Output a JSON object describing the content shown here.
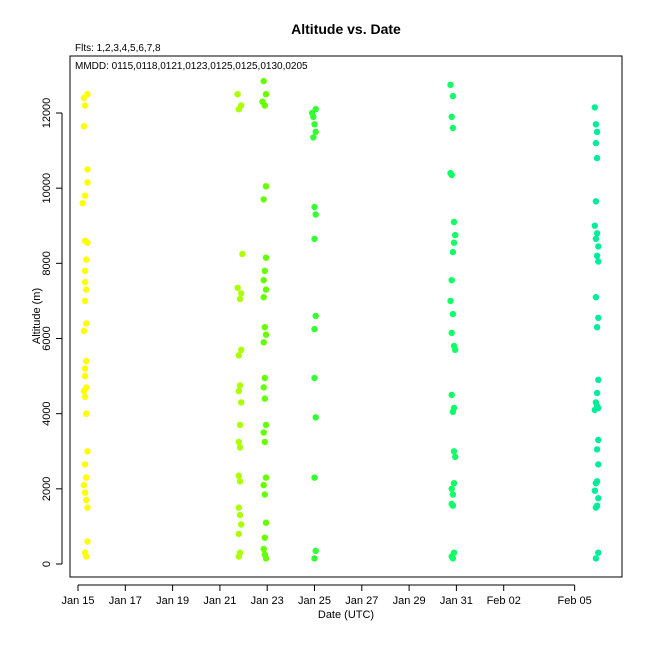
{
  "chart_data": {
    "type": "scatter",
    "title": "Altitude  vs. Date",
    "subtitle_lines": [
      "Flts: 1,2,3,4,5,6,7,8",
      "MMDD: 0115,0118,0121,0123,0125,0125,0130,0205"
    ],
    "xlabel": "Date (UTC)",
    "ylabel": "Altitude (m)",
    "x_unit": "days from Jan 15",
    "xlim": [
      -0.7,
      23.2
    ],
    "ylim": [
      -400,
      13000
    ],
    "grid": false,
    "legend": "none",
    "x_ticks": [
      {
        "value": 0,
        "label": "Jan 15"
      },
      {
        "value": 2,
        "label": "Jan 17"
      },
      {
        "value": 4,
        "label": "Jan 19"
      },
      {
        "value": 6,
        "label": "Jan 21"
      },
      {
        "value": 8,
        "label": "Jan 23"
      },
      {
        "value": 10,
        "label": "Jan 25"
      },
      {
        "value": 12,
        "label": "Jan 27"
      },
      {
        "value": 14,
        "label": "Jan 29"
      },
      {
        "value": 16,
        "label": "Jan 31"
      },
      {
        "value": 18,
        "label": "Feb 02"
      },
      {
        "value": 21,
        "label": "Feb 05"
      }
    ],
    "y_ticks": [
      0,
      2000,
      4000,
      6000,
      8000,
      10000,
      12000
    ],
    "series": [
      {
        "color": "#ffff00",
        "x_center": 0.3,
        "points": [
          [
            0.25,
            12400
          ],
          [
            0.4,
            12500
          ],
          [
            0.3,
            12200
          ],
          [
            0.25,
            11650
          ],
          [
            0.4,
            10500
          ],
          [
            0.4,
            10150
          ],
          [
            0.3,
            9800
          ],
          [
            0.2,
            9600
          ],
          [
            0.3,
            8600
          ],
          [
            0.4,
            8550
          ],
          [
            0.35,
            8100
          ],
          [
            0.3,
            7800
          ],
          [
            0.3,
            7500
          ],
          [
            0.35,
            7300
          ],
          [
            0.3,
            7000
          ],
          [
            0.35,
            6400
          ],
          [
            0.25,
            6200
          ],
          [
            0.35,
            5400
          ],
          [
            0.3,
            5200
          ],
          [
            0.3,
            5000
          ],
          [
            0.35,
            4700
          ],
          [
            0.25,
            4600
          ],
          [
            0.3,
            4450
          ],
          [
            0.35,
            4000
          ],
          [
            0.4,
            3000
          ],
          [
            0.3,
            2650
          ],
          [
            0.35,
            2300
          ],
          [
            0.25,
            2100
          ],
          [
            0.3,
            1900
          ],
          [
            0.35,
            1700
          ],
          [
            0.4,
            1500
          ],
          [
            0.4,
            600
          ],
          [
            0.3,
            300
          ],
          [
            0.35,
            200
          ]
        ]
      },
      {
        "color": "#aaff00",
        "x_center": 6.8,
        "points": [
          [
            6.75,
            12500
          ],
          [
            6.9,
            12200
          ],
          [
            6.8,
            12100
          ],
          [
            6.95,
            8250
          ],
          [
            6.75,
            7350
          ],
          [
            6.9,
            7200
          ],
          [
            6.85,
            7050
          ],
          [
            6.9,
            5700
          ],
          [
            6.8,
            5550
          ],
          [
            6.85,
            4750
          ],
          [
            6.8,
            4600
          ],
          [
            6.9,
            4300
          ],
          [
            6.85,
            3700
          ],
          [
            6.8,
            3250
          ],
          [
            6.85,
            3100
          ],
          [
            6.8,
            2350
          ],
          [
            6.85,
            2200
          ],
          [
            6.8,
            1500
          ],
          [
            6.85,
            1300
          ],
          [
            6.9,
            1050
          ],
          [
            6.8,
            800
          ],
          [
            6.85,
            300
          ],
          [
            6.8,
            200
          ]
        ]
      },
      {
        "color": "#66ff00",
        "x_center": 7.9,
        "points": [
          [
            7.85,
            12850
          ],
          [
            7.95,
            12500
          ],
          [
            7.8,
            12300
          ],
          [
            7.9,
            12200
          ],
          [
            7.95,
            10050
          ],
          [
            7.85,
            9700
          ],
          [
            7.95,
            8150
          ],
          [
            7.9,
            7800
          ],
          [
            7.85,
            7550
          ],
          [
            7.95,
            7300
          ],
          [
            7.85,
            7100
          ],
          [
            7.9,
            6300
          ],
          [
            7.95,
            6100
          ],
          [
            7.85,
            5900
          ],
          [
            7.9,
            4950
          ],
          [
            7.85,
            4700
          ],
          [
            7.9,
            4400
          ],
          [
            7.95,
            3700
          ],
          [
            7.85,
            3500
          ],
          [
            7.9,
            3250
          ],
          [
            7.95,
            2300
          ],
          [
            7.85,
            2100
          ],
          [
            7.9,
            1850
          ],
          [
            7.95,
            1100
          ],
          [
            7.9,
            700
          ],
          [
            7.85,
            400
          ],
          [
            7.9,
            250
          ],
          [
            7.95,
            150
          ]
        ]
      },
      {
        "color": "#33ff33",
        "x_center": 10.0,
        "points": [
          [
            9.9,
            12000
          ],
          [
            10.05,
            12100
          ],
          [
            9.95,
            11900
          ],
          [
            10.0,
            11700
          ],
          [
            10.05,
            11500
          ],
          [
            9.95,
            11350
          ],
          [
            10.0,
            9500
          ],
          [
            10.05,
            9300
          ],
          [
            10.0,
            8650
          ],
          [
            10.05,
            6600
          ],
          [
            10.0,
            6250
          ],
          [
            10.0,
            4950
          ],
          [
            10.05,
            3900
          ],
          [
            10.0,
            2300
          ],
          [
            10.05,
            350
          ],
          [
            10.0,
            150
          ]
        ]
      },
      {
        "color": "#11ff66",
        "x_center": 15.8,
        "points": [
          [
            15.75,
            12750
          ],
          [
            15.85,
            12450
          ],
          [
            15.8,
            11900
          ],
          [
            15.85,
            11600
          ],
          [
            15.75,
            10400
          ],
          [
            15.8,
            10350
          ],
          [
            15.9,
            9100
          ],
          [
            15.95,
            8750
          ],
          [
            15.9,
            8550
          ],
          [
            15.85,
            8300
          ],
          [
            15.8,
            7550
          ],
          [
            15.75,
            7000
          ],
          [
            15.85,
            6650
          ],
          [
            15.8,
            6150
          ],
          [
            15.9,
            5800
          ],
          [
            15.95,
            5700
          ],
          [
            15.8,
            4500
          ],
          [
            15.9,
            4150
          ],
          [
            15.85,
            4050
          ],
          [
            15.9,
            3000
          ],
          [
            15.95,
            2850
          ],
          [
            15.8,
            2000
          ],
          [
            15.85,
            1850
          ],
          [
            15.9,
            2150
          ],
          [
            15.8,
            1600
          ],
          [
            15.85,
            1550
          ],
          [
            15.9,
            300
          ],
          [
            15.8,
            200
          ],
          [
            15.85,
            150
          ]
        ]
      },
      {
        "color": "#00ee99",
        "x_center": 21.9,
        "points": [
          [
            21.85,
            12150
          ],
          [
            21.9,
            11700
          ],
          [
            21.95,
            11500
          ],
          [
            21.9,
            11200
          ],
          [
            21.95,
            10800
          ],
          [
            21.9,
            9650
          ],
          [
            21.85,
            9000
          ],
          [
            21.95,
            8800
          ],
          [
            21.9,
            8650
          ],
          [
            22.0,
            8450
          ],
          [
            21.95,
            8200
          ],
          [
            22.0,
            8050
          ],
          [
            21.9,
            7100
          ],
          [
            22.0,
            6550
          ],
          [
            21.95,
            6300
          ],
          [
            22.0,
            4900
          ],
          [
            21.95,
            4550
          ],
          [
            21.9,
            4300
          ],
          [
            21.95,
            4200
          ],
          [
            22.0,
            4150
          ],
          [
            21.85,
            4100
          ],
          [
            22.0,
            3300
          ],
          [
            21.95,
            3050
          ],
          [
            22.0,
            2650
          ],
          [
            21.9,
            2150
          ],
          [
            21.95,
            2200
          ],
          [
            21.85,
            1950
          ],
          [
            22.0,
            1750
          ],
          [
            21.9,
            1500
          ],
          [
            21.95,
            1550
          ],
          [
            22.0,
            300
          ],
          [
            21.9,
            150
          ]
        ]
      }
    ]
  }
}
